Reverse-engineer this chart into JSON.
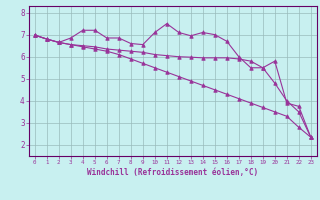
{
  "xlabel": "Windchill (Refroidissement éolien,°C)",
  "x_values": [
    0,
    1,
    2,
    3,
    4,
    5,
    6,
    7,
    8,
    9,
    10,
    11,
    12,
    13,
    14,
    15,
    16,
    17,
    18,
    19,
    20,
    21,
    22,
    23
  ],
  "line1": [
    6.98,
    6.8,
    6.65,
    6.85,
    7.2,
    7.2,
    6.85,
    6.85,
    6.6,
    6.55,
    7.1,
    7.5,
    7.1,
    6.95,
    7.1,
    7.0,
    6.7,
    6.0,
    5.5,
    5.5,
    5.8,
    3.9,
    3.75,
    2.35
  ],
  "line2": [
    6.98,
    6.8,
    6.65,
    6.55,
    6.5,
    6.45,
    6.35,
    6.3,
    6.25,
    6.2,
    6.1,
    6.05,
    6.0,
    5.98,
    5.95,
    5.95,
    5.95,
    5.9,
    5.8,
    5.5,
    4.8,
    4.0,
    3.5,
    2.35
  ],
  "line3": [
    6.98,
    6.8,
    6.65,
    6.55,
    6.45,
    6.35,
    6.25,
    6.1,
    5.9,
    5.7,
    5.5,
    5.3,
    5.1,
    4.9,
    4.7,
    4.5,
    4.3,
    4.1,
    3.9,
    3.7,
    3.5,
    3.3,
    2.8,
    2.35
  ],
  "line_color": "#993399",
  "bg_color": "#c8f0f0",
  "grid_color": "#99bbbb",
  "ylim": [
    1.5,
    8.3
  ],
  "xlim": [
    -0.5,
    23.5
  ],
  "yticks": [
    2,
    3,
    4,
    5,
    6,
    7,
    8
  ],
  "xticks": [
    0,
    1,
    2,
    3,
    4,
    5,
    6,
    7,
    8,
    9,
    10,
    11,
    12,
    13,
    14,
    15,
    16,
    17,
    18,
    19,
    20,
    21,
    22,
    23
  ],
  "xtick_labels": [
    "0",
    "1",
    "2",
    "3",
    "4",
    "5",
    "6",
    "7",
    "8",
    "9",
    "10",
    "11",
    "12",
    "13",
    "14",
    "15",
    "16",
    "17",
    "18",
    "19",
    "20",
    "21",
    "22",
    "23"
  ]
}
